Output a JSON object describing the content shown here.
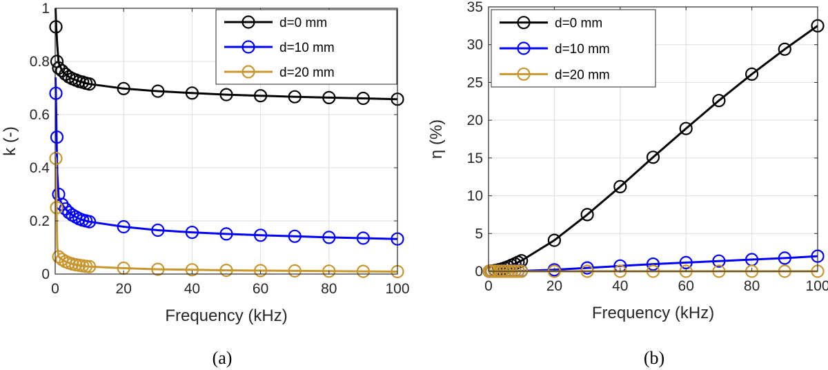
{
  "chart_data": [
    {
      "type": "line",
      "caption": "(a)",
      "xlabel": "Frequency (kHz)",
      "ylabel": "k (-)",
      "xlim": [
        0,
        100
      ],
      "ylim": [
        0,
        1
      ],
      "xticks": [
        0,
        20,
        40,
        60,
        80,
        100
      ],
      "yticks": [
        0,
        0.2,
        0.4,
        0.6,
        0.8,
        1
      ],
      "ytick_labels": [
        "0",
        "0.2",
        "0.4",
        "0.6",
        "0.8",
        "1"
      ],
      "grid": true,
      "legend_position": "top-right",
      "series": [
        {
          "name": "d=0 mm",
          "color": "#000000",
          "line_x": [
            0.1,
            0.3,
            0.6,
            1,
            2,
            3,
            4,
            5,
            6,
            7,
            8,
            9,
            10,
            20,
            30,
            40,
            50,
            60,
            70,
            80,
            90,
            100
          ],
          "line_y": [
            1.0,
            0.93,
            0.86,
            0.795,
            0.765,
            0.752,
            0.742,
            0.735,
            0.73,
            0.725,
            0.722,
            0.718,
            0.715,
            0.698,
            0.688,
            0.681,
            0.675,
            0.671,
            0.667,
            0.664,
            0.661,
            0.658
          ],
          "x": [
            0.2,
            0.5,
            1,
            2,
            3,
            4,
            5,
            6,
            7,
            8,
            9,
            10,
            20,
            30,
            40,
            50,
            60,
            70,
            80,
            90,
            100
          ],
          "y": [
            0.93,
            0.8,
            0.775,
            0.765,
            0.752,
            0.742,
            0.735,
            0.73,
            0.725,
            0.722,
            0.718,
            0.715,
            0.698,
            0.688,
            0.681,
            0.675,
            0.671,
            0.667,
            0.664,
            0.661,
            0.658
          ]
        },
        {
          "name": "d=10 mm",
          "color": "#0000ff",
          "line_x": [
            0.1,
            0.2,
            0.4,
            0.6,
            1,
            2,
            3,
            4,
            5,
            6,
            7,
            8,
            9,
            10,
            20,
            30,
            40,
            50,
            60,
            70,
            80,
            90,
            100
          ],
          "line_y": [
            0.74,
            0.68,
            0.52,
            0.38,
            0.29,
            0.262,
            0.245,
            0.232,
            0.222,
            0.215,
            0.208,
            0.203,
            0.2,
            0.197,
            0.178,
            0.165,
            0.157,
            0.151,
            0.146,
            0.142,
            0.138,
            0.135,
            0.132
          ],
          "x": [
            0.2,
            0.5,
            1,
            2,
            3,
            4,
            5,
            6,
            7,
            8,
            9,
            10,
            20,
            30,
            40,
            50,
            60,
            70,
            80,
            90,
            100
          ],
          "y": [
            0.68,
            0.515,
            0.3,
            0.262,
            0.245,
            0.232,
            0.222,
            0.215,
            0.208,
            0.203,
            0.2,
            0.197,
            0.178,
            0.165,
            0.157,
            0.151,
            0.146,
            0.142,
            0.138,
            0.135,
            0.132
          ]
        },
        {
          "name": "d=20 mm",
          "color": "#c8962d",
          "line_x": [
            0.1,
            0.2,
            0.4,
            0.6,
            1,
            2,
            3,
            4,
            5,
            6,
            7,
            8,
            9,
            10,
            20,
            30,
            40,
            50,
            60,
            70,
            80,
            90,
            100
          ],
          "line_y": [
            0.44,
            0.43,
            0.25,
            0.1,
            0.065,
            0.055,
            0.047,
            0.042,
            0.038,
            0.035,
            0.033,
            0.031,
            0.029,
            0.028,
            0.022,
            0.018,
            0.016,
            0.014,
            0.013,
            0.012,
            0.011,
            0.01,
            0.009
          ],
          "x": [
            0.2,
            0.4,
            1,
            2,
            3,
            4,
            5,
            6,
            7,
            8,
            9,
            10,
            20,
            30,
            40,
            50,
            60,
            70,
            80,
            90,
            100
          ],
          "y": [
            0.435,
            0.25,
            0.065,
            0.055,
            0.047,
            0.042,
            0.038,
            0.035,
            0.033,
            0.031,
            0.029,
            0.028,
            0.022,
            0.018,
            0.016,
            0.014,
            0.013,
            0.012,
            0.011,
            0.01,
            0.009
          ]
        }
      ]
    },
    {
      "type": "line",
      "caption": "(b)",
      "xlabel": "Frequency (kHz)",
      "ylabel": "η (%)",
      "xlim": [
        0,
        100
      ],
      "ylim": [
        0,
        35
      ],
      "xticks": [
        0,
        20,
        40,
        60,
        80,
        100
      ],
      "yticks": [
        0,
        5,
        10,
        15,
        20,
        25,
        30,
        35
      ],
      "ytick_labels": [
        "0",
        "5",
        "10",
        "15",
        "20",
        "25",
        "30",
        "35"
      ],
      "grid": true,
      "legend_position": "top-left",
      "series": [
        {
          "name": "d=0 mm",
          "color": "#000000",
          "line_x": [
            0,
            1,
            2,
            3,
            4,
            5,
            6,
            7,
            8,
            9,
            10,
            20,
            30,
            40,
            50,
            60,
            70,
            80,
            90,
            100
          ],
          "line_y": [
            0,
            0.03,
            0.1,
            0.2,
            0.3,
            0.45,
            0.6,
            0.8,
            1.0,
            1.2,
            1.4,
            4.1,
            7.5,
            11.2,
            15.1,
            18.9,
            22.6,
            26.1,
            29.4,
            32.5
          ],
          "x": [
            0.2,
            0.5,
            1,
            2,
            3,
            4,
            5,
            6,
            7,
            8,
            9,
            10,
            20,
            30,
            40,
            50,
            60,
            70,
            80,
            90,
            100
          ],
          "y": [
            0,
            0.01,
            0.03,
            0.1,
            0.2,
            0.3,
            0.45,
            0.6,
            0.8,
            1.0,
            1.2,
            1.4,
            4.1,
            7.5,
            11.2,
            15.1,
            18.9,
            22.6,
            26.1,
            29.4,
            32.5
          ]
        },
        {
          "name": "d=10 mm",
          "color": "#0000ff",
          "line_x": [
            0,
            10,
            20,
            30,
            40,
            50,
            60,
            70,
            80,
            90,
            100
          ],
          "line_y": [
            0,
            0.05,
            0.2,
            0.45,
            0.7,
            0.95,
            1.15,
            1.35,
            1.55,
            1.75,
            2.0
          ],
          "x": [
            0.2,
            0.5,
            1,
            2,
            3,
            4,
            5,
            6,
            7,
            8,
            9,
            10,
            20,
            30,
            40,
            50,
            60,
            70,
            80,
            90,
            100
          ],
          "y": [
            0,
            0,
            0,
            0,
            0.01,
            0.01,
            0.02,
            0.02,
            0.03,
            0.04,
            0.05,
            0.05,
            0.2,
            0.45,
            0.7,
            0.95,
            1.15,
            1.35,
            1.55,
            1.75,
            2.0
          ]
        },
        {
          "name": "d=20 mm",
          "color": "#c8962d",
          "line_x": [
            0,
            100
          ],
          "line_y": [
            0,
            0
          ],
          "x": [
            0.2,
            0.5,
            1,
            2,
            3,
            4,
            5,
            6,
            7,
            8,
            9,
            10,
            20,
            30,
            40,
            50,
            60,
            70,
            80,
            90,
            100
          ],
          "y": [
            0,
            0,
            0,
            0,
            0,
            0,
            0,
            0,
            0,
            0,
            0,
            0,
            0,
            0,
            0,
            0,
            0,
            0,
            0,
            0,
            0
          ]
        }
      ]
    }
  ]
}
